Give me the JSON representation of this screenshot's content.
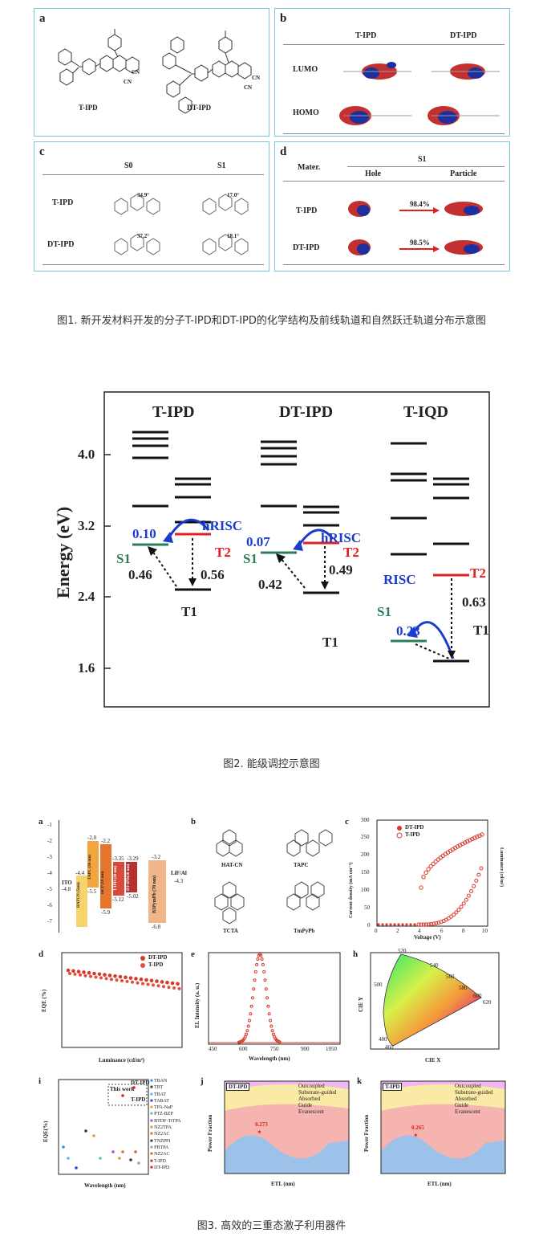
{
  "figure1": {
    "caption": "图1. 新开发材料开发的分子T-IPD和DT-IPD的化学结构及前线轨道和自然跃迁轨道分布示意图",
    "panel_a": {
      "label": "a",
      "mol1": "T-IPD",
      "mol2": "DT-IPD",
      "cn": "CN"
    },
    "panel_b": {
      "label": "b",
      "col1": "T-IPD",
      "col2": "DT-IPD",
      "row1": "LUMO",
      "row2": "HOMO"
    },
    "panel_c": {
      "label": "c",
      "col1": "S0",
      "col2": "S1",
      "row1": "T-IPD",
      "row2": "DT-IPD",
      "ang_t_s0": "34.9°",
      "ang_t_s1": "17.0°",
      "ang_dt_s0": "37.2°",
      "ang_dt_s1": "18.1°"
    },
    "panel_d": {
      "label": "d",
      "mater": "Mater.",
      "s1": "S1",
      "hole": "Hole",
      "particle": "Particle",
      "row1": "T-IPD",
      "row2": "DT-IPD",
      "pct1": "98.4%",
      "pct2": "98.5%"
    }
  },
  "figure2": {
    "caption": "图2. 能级调控示意图",
    "ylabel": "Energy (eV)",
    "yticks": [
      "4.0",
      "3.2",
      "2.4",
      "1.6"
    ],
    "groups": [
      "T-IPD",
      "DT-IPD",
      "T-IQD"
    ],
    "tipd": {
      "k1": "0.10",
      "hrisc": "hRISC",
      "s1": "S1",
      "t2": "T2",
      "v1": "0.46",
      "v2": "0.56",
      "t1": "T1"
    },
    "dtipd": {
      "k1": "0.07",
      "hrisc": "hRISC",
      "s1": "S1",
      "t2": "T2",
      "v1": "0.42",
      "v2": "0.49",
      "t1": "T1"
    },
    "tiqd": {
      "risc": "RISC",
      "t2": "T2",
      "v1": "0.63",
      "s1": "S1",
      "k1": "0.23",
      "t1": "T1"
    },
    "colors": {
      "s1": "#2e7d5a",
      "t2": "#e02020",
      "blue": "#1a3ccc"
    }
  },
  "figure3": {
    "caption": "图3. 高效的三重态激子利用器件",
    "panel_a": {
      "label": "a",
      "layers": [
        "ITO",
        "HATCN (5nm)",
        "TAPC (30 nm)",
        "mCP (10 nm)",
        "T-IPD (30 nm)",
        "DT-IPD(30 nm)",
        "B3PymPb (70 nm)",
        "LiF/Al"
      ],
      "values": [
        "-4.8",
        "-4.4",
        "-2.0",
        "-5.5",
        "-2.2",
        "-5.9",
        "-3.35",
        "-5.12",
        "-3.29",
        "-5.02",
        "-3.2",
        "-6.8",
        "-4.3"
      ],
      "yticks": [
        "-1",
        "-2",
        "-3",
        "-4",
        "-5",
        "-6",
        "-7"
      ]
    },
    "panel_b": {
      "label": "b",
      "names": [
        "HAT-CN",
        "TAPC",
        "TCTA",
        "TmPyPb"
      ]
    },
    "panel_c": {
      "label": "c",
      "legend": [
        "DT-IPD",
        "T-IPD"
      ],
      "xlabel": "Voltage (V)",
      "ylabel": "Current density (mA cm⁻²)",
      "y2label": "Luminance (cd/m²)",
      "xticks": [
        "0",
        "2",
        "4",
        "6",
        "8",
        "10"
      ],
      "yticks": [
        "0",
        "50",
        "100",
        "150",
        "200",
        "250",
        "300"
      ]
    },
    "panel_d": {
      "label": "d",
      "legend": [
        "DT-IPD",
        "T-IPD"
      ],
      "xlabel": "Luminance (cd/m²)",
      "ylabel": "EQE (%)"
    },
    "panel_e": {
      "label": "e",
      "xlabel": "Wavelength (nm)",
      "ylabel": "EL Intensity (a. u.)",
      "xticks": [
        "450",
        "600",
        "750",
        "900",
        "1050"
      ]
    },
    "panel_h": {
      "label": "h",
      "xlabel": "CIE X",
      "ylabel": "CIE Y",
      "wl": [
        "520",
        "540",
        "560",
        "580",
        "600",
        "620",
        "480",
        "460",
        "500"
      ]
    },
    "panel_i": {
      "label": "i",
      "xlabel": "Wavelength (nm)",
      "ylabel": "EQE(%)",
      "thiswork": "This work",
      "legend": [
        "TBAN",
        "TBT",
        "TBAT",
        "TABAT",
        "TPA-NaP",
        "PTZ-BZP",
        "BTDF-TtTPA",
        "NZ2TPA",
        "NZ2AC",
        "TNZPPI",
        "PBTPA",
        "NZ2AC",
        "T-IPD",
        "DT-IPD"
      ],
      "pts": [
        "DT-IPD",
        "T-IPD"
      ]
    },
    "panel_j": {
      "label": "j",
      "tag": "DT-IPD",
      "value": "0.273",
      "xlabel": "ETL (nm)",
      "ylabel": "Power Fraction",
      "legend": [
        "Outcoupled",
        "Substrate-guided",
        "Absorbed",
        "Guide",
        "Evanescent"
      ]
    },
    "panel_k": {
      "label": "k",
      "tag": "T-IPD",
      "value": "0.265",
      "xlabel": "ETL (nm)",
      "ylabel": "Power Fraction",
      "legend": [
        "Outcoupled",
        "Substrate-guided",
        "Absorbed",
        "Guide",
        "Evanescent"
      ]
    }
  }
}
